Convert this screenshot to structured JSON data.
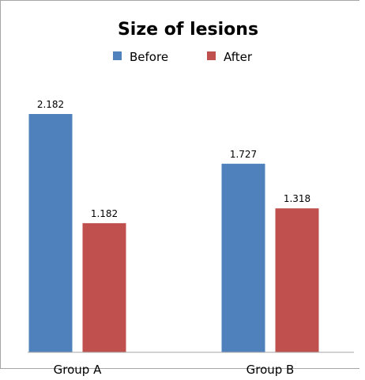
{
  "chart_data": {
    "type": "bar",
    "title": "Size of lesions",
    "categories": [
      "Group A",
      "Group B"
    ],
    "series": [
      {
        "name": "Before",
        "color": "#4f81bd",
        "values": [
          2.182,
          1.727
        ]
      },
      {
        "name": "After",
        "color": "#c0504d",
        "values": [
          1.182,
          1.318
        ]
      }
    ],
    "data_labels": [
      [
        "2.182",
        "1.727"
      ],
      [
        "1.182",
        "1.318"
      ]
    ],
    "legend_position": "top",
    "grid": false,
    "ylim": [
      0,
      2.5
    ]
  }
}
